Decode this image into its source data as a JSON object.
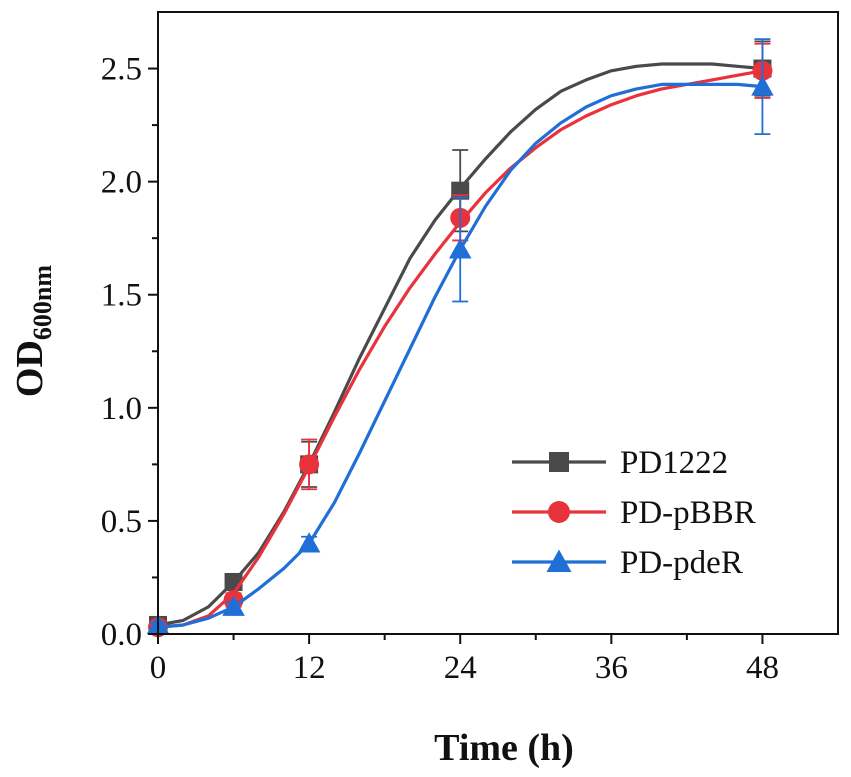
{
  "chart_data": {
    "type": "line",
    "title": "",
    "xlabel": "Time (h)",
    "ylabel_main": "OD",
    "ylabel_sub": "600nm",
    "xlim": [
      0,
      54
    ],
    "ylim": [
      0,
      2.75
    ],
    "x_ticks": [
      0,
      12,
      24,
      36,
      48
    ],
    "x_tick_labels": [
      "0",
      "12",
      "24",
      "36",
      "48"
    ],
    "y_ticks": [
      0,
      0.5,
      1.0,
      1.5,
      2.0,
      2.5
    ],
    "y_tick_labels": [
      "0.0",
      "0.5",
      "1.0",
      "1.5",
      "2.0",
      "2.5"
    ],
    "legend_position": "bottom-right",
    "series": [
      {
        "name": "PD1222",
        "color": "#4a4a4a",
        "marker": "square",
        "x": [
          0,
          6,
          12,
          24,
          48
        ],
        "y": [
          0.04,
          0.23,
          0.75,
          1.96,
          2.5
        ],
        "err": [
          0.01,
          0.02,
          0.1,
          0.18,
          0.12
        ],
        "curve": [
          [
            0,
            0.04
          ],
          [
            2,
            0.06
          ],
          [
            4,
            0.12
          ],
          [
            6,
            0.23
          ],
          [
            8,
            0.36
          ],
          [
            10,
            0.54
          ],
          [
            12,
            0.75
          ],
          [
            14,
            0.98
          ],
          [
            16,
            1.22
          ],
          [
            18,
            1.44
          ],
          [
            20,
            1.66
          ],
          [
            22,
            1.83
          ],
          [
            24,
            1.97
          ],
          [
            26,
            2.1
          ],
          [
            28,
            2.22
          ],
          [
            30,
            2.32
          ],
          [
            32,
            2.4
          ],
          [
            34,
            2.45
          ],
          [
            36,
            2.49
          ],
          [
            38,
            2.51
          ],
          [
            40,
            2.52
          ],
          [
            42,
            2.52
          ],
          [
            44,
            2.52
          ],
          [
            46,
            2.51
          ],
          [
            48,
            2.5
          ]
        ]
      },
      {
        "name": "PD-pBBR",
        "color": "#e8323c",
        "marker": "circle",
        "x": [
          0,
          6,
          12,
          24,
          48
        ],
        "y": [
          0.03,
          0.15,
          0.75,
          1.84,
          2.49
        ],
        "err": [
          0.01,
          0.03,
          0.11,
          0.1,
          0.12
        ],
        "curve": [
          [
            0,
            0.03
          ],
          [
            2,
            0.04
          ],
          [
            4,
            0.08
          ],
          [
            6,
            0.18
          ],
          [
            8,
            0.34
          ],
          [
            10,
            0.53
          ],
          [
            12,
            0.74
          ],
          [
            14,
            0.96
          ],
          [
            16,
            1.17
          ],
          [
            18,
            1.36
          ],
          [
            20,
            1.53
          ],
          [
            22,
            1.68
          ],
          [
            24,
            1.82
          ],
          [
            26,
            1.95
          ],
          [
            28,
            2.06
          ],
          [
            30,
            2.15
          ],
          [
            32,
            2.23
          ],
          [
            34,
            2.29
          ],
          [
            36,
            2.34
          ],
          [
            38,
            2.38
          ],
          [
            40,
            2.41
          ],
          [
            42,
            2.43
          ],
          [
            44,
            2.45
          ],
          [
            46,
            2.47
          ],
          [
            48,
            2.49
          ]
        ]
      },
      {
        "name": "PD-pdeR",
        "color": "#1f6fd6",
        "marker": "triangle",
        "x": [
          0,
          6,
          12,
          24,
          48
        ],
        "y": [
          0.04,
          0.12,
          0.4,
          1.7,
          2.42
        ],
        "err": [
          0.01,
          0.02,
          0.03,
          0.23,
          0.21
        ],
        "curve": [
          [
            0,
            0.03
          ],
          [
            2,
            0.04
          ],
          [
            4,
            0.07
          ],
          [
            6,
            0.12
          ],
          [
            8,
            0.2
          ],
          [
            10,
            0.29
          ],
          [
            12,
            0.4
          ],
          [
            14,
            0.58
          ],
          [
            16,
            0.8
          ],
          [
            18,
            1.03
          ],
          [
            20,
            1.26
          ],
          [
            22,
            1.49
          ],
          [
            24,
            1.7
          ],
          [
            26,
            1.89
          ],
          [
            28,
            2.05
          ],
          [
            30,
            2.17
          ],
          [
            32,
            2.26
          ],
          [
            34,
            2.33
          ],
          [
            36,
            2.38
          ],
          [
            38,
            2.41
          ],
          [
            40,
            2.43
          ],
          [
            42,
            2.43
          ],
          [
            44,
            2.43
          ],
          [
            46,
            2.43
          ],
          [
            48,
            2.42
          ]
        ]
      }
    ]
  }
}
